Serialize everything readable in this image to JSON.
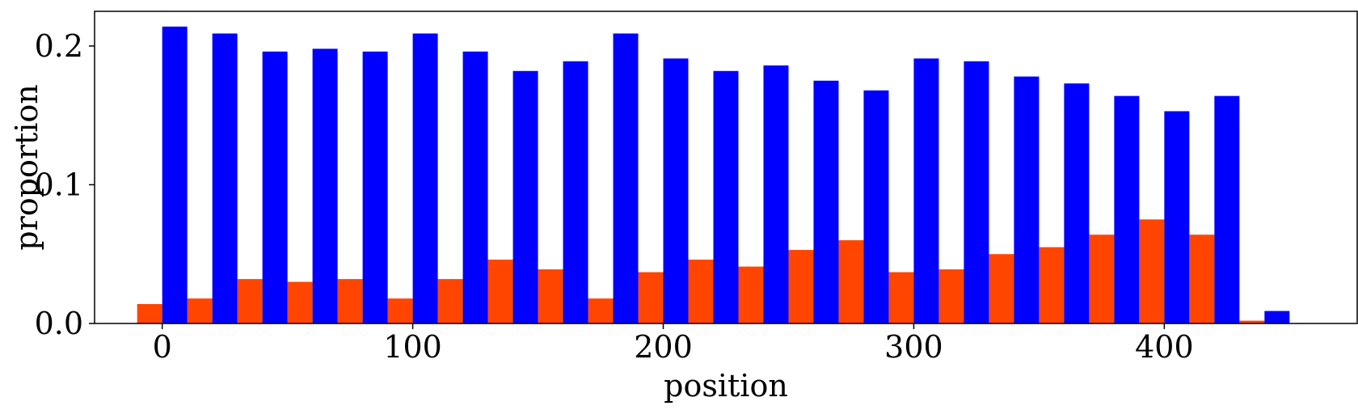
{
  "chart_data": {
    "type": "bar",
    "xlabel": "position",
    "ylabel": "proportion",
    "xlim": [
      -27,
      477
    ],
    "ylim": [
      0,
      0.225
    ],
    "grid": false,
    "bin_width": 20,
    "x_ticks": [
      {
        "value": 0,
        "label": "0"
      },
      {
        "value": 100,
        "label": "100"
      },
      {
        "value": 200,
        "label": "200"
      },
      {
        "value": 300,
        "label": "300"
      },
      {
        "value": 400,
        "label": "400"
      }
    ],
    "y_ticks": [
      {
        "value": 0.0,
        "label": "0.0"
      },
      {
        "value": 0.1,
        "label": "0.1"
      },
      {
        "value": 0.2,
        "label": "0.2"
      }
    ],
    "series": [
      {
        "color": "#ff4500",
        "x": [
          0,
          20,
          40,
          60,
          80,
          100,
          120,
          140,
          160,
          180,
          200,
          220,
          240,
          260,
          280,
          300,
          320,
          340,
          360,
          380,
          400,
          420,
          440
        ],
        "values": [
          0.014,
          0.018,
          0.032,
          0.03,
          0.032,
          0.018,
          0.032,
          0.046,
          0.039,
          0.018,
          0.037,
          0.046,
          0.041,
          0.053,
          0.06,
          0.037,
          0.039,
          0.05,
          0.055,
          0.064,
          0.075,
          0.064,
          0.002
        ]
      },
      {
        "color": "#0000ff",
        "x": [
          0,
          20,
          40,
          60,
          80,
          100,
          120,
          140,
          160,
          180,
          200,
          220,
          240,
          260,
          280,
          300,
          320,
          340,
          360,
          380,
          400,
          420,
          440
        ],
        "values": [
          0.214,
          0.209,
          0.196,
          0.198,
          0.196,
          0.209,
          0.196,
          0.182,
          0.189,
          0.209,
          0.191,
          0.182,
          0.186,
          0.175,
          0.168,
          0.191,
          0.189,
          0.178,
          0.173,
          0.164,
          0.153,
          0.164,
          0.009
        ]
      }
    ]
  }
}
